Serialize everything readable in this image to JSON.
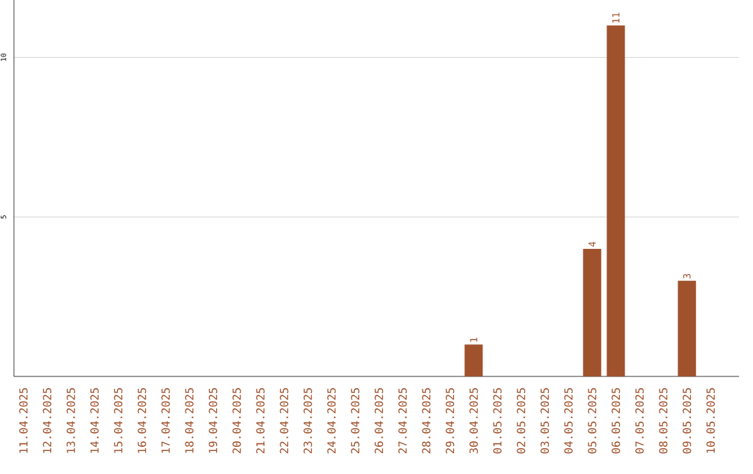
{
  "chart_data": {
    "type": "bar",
    "categories": [
      "11.04.2025",
      "12.04.2025",
      "13.04.2025",
      "14.04.2025",
      "15.04.2025",
      "16.04.2025",
      "17.04.2025",
      "18.04.2025",
      "19.04.2025",
      "20.04.2025",
      "21.04.2025",
      "22.04.2025",
      "23.04.2025",
      "24.04.2025",
      "25.04.2025",
      "26.04.2025",
      "27.04.2025",
      "28.04.2025",
      "29.04.2025",
      "30.04.2025",
      "01.05.2025",
      "02.05.2025",
      "03.05.2025",
      "04.05.2025",
      "05.05.2025",
      "06.05.2025",
      "07.05.2025",
      "08.05.2025",
      "09.05.2025",
      "10.05.2025"
    ],
    "values": [
      0,
      0,
      0,
      0,
      0,
      0,
      0,
      0,
      0,
      0,
      0,
      0,
      0,
      0,
      0,
      0,
      0,
      0,
      0,
      1,
      0,
      0,
      0,
      0,
      4,
      11,
      0,
      0,
      3,
      0
    ],
    "color": "#a0522d",
    "ylim": [
      0,
      11.8
    ],
    "yticks": [
      5,
      10
    ],
    "grid": "y",
    "value_labels": [
      null,
      null,
      null,
      null,
      null,
      null,
      null,
      null,
      null,
      null,
      null,
      null,
      null,
      null,
      null,
      null,
      null,
      null,
      null,
      "1",
      null,
      null,
      null,
      null,
      "4",
      "11",
      null,
      null,
      "3",
      null
    ]
  }
}
